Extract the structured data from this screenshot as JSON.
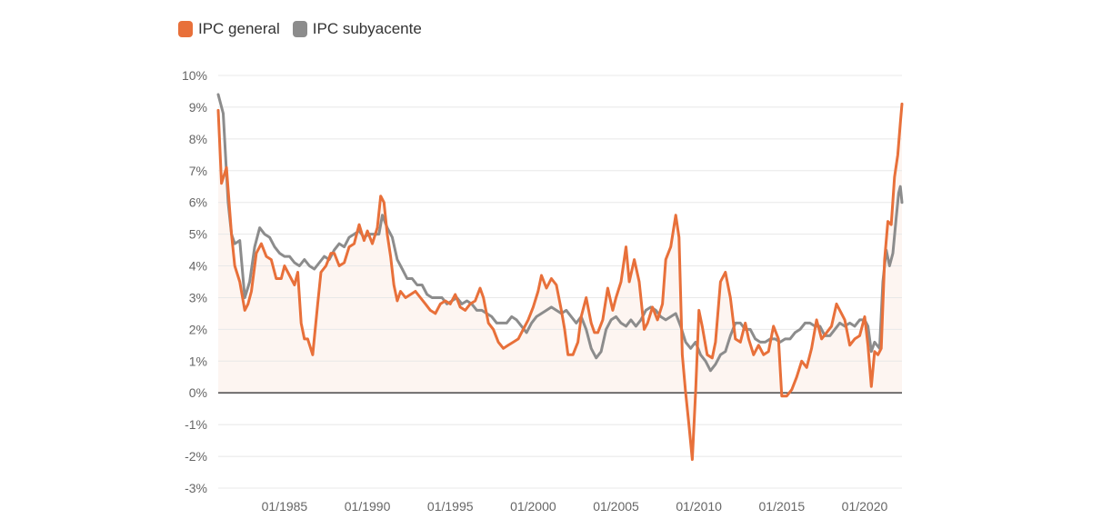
{
  "legend": {
    "items": [
      {
        "label": "IPC general",
        "color": "#E8703A"
      },
      {
        "label": "IPC subyacente",
        "color": "#8C8C8C"
      }
    ]
  },
  "chart_data": {
    "type": "line",
    "title": "",
    "xlabel": "",
    "ylabel": "",
    "ylim": [
      -3,
      10
    ],
    "xlim": [
      1981.0,
      2022.25
    ],
    "yticks": [
      "10%",
      "9%",
      "8%",
      "7%",
      "6%",
      "5%",
      "4%",
      "3%",
      "2%",
      "1%",
      "0%",
      "-1%",
      "-2%",
      "-3%"
    ],
    "ytick_values": [
      10,
      9,
      8,
      7,
      6,
      5,
      4,
      3,
      2,
      1,
      0,
      -1,
      -2,
      -3
    ],
    "xticks": [
      "01/1985",
      "01/1990",
      "01/1995",
      "01/2000",
      "01/2005",
      "01/2010",
      "01/2015",
      "01/2020"
    ],
    "xtick_values": [
      1985,
      1990,
      1995,
      2000,
      2005,
      2010,
      2015,
      2020
    ],
    "grid": true,
    "legend_position": "top-left",
    "series": [
      {
        "name": "IPC general",
        "color": "#E8703A",
        "points": [
          [
            1981.0,
            8.9
          ],
          [
            1981.2,
            6.6
          ],
          [
            1981.5,
            7.1
          ],
          [
            1981.8,
            5.0
          ],
          [
            1982.0,
            4.0
          ],
          [
            1982.3,
            3.5
          ],
          [
            1982.6,
            2.6
          ],
          [
            1982.8,
            2.8
          ],
          [
            1983.0,
            3.2
          ],
          [
            1983.3,
            4.4
          ],
          [
            1983.6,
            4.7
          ],
          [
            1983.9,
            4.3
          ],
          [
            1984.2,
            4.2
          ],
          [
            1984.5,
            3.6
          ],
          [
            1984.8,
            3.6
          ],
          [
            1985.0,
            4.0
          ],
          [
            1985.3,
            3.7
          ],
          [
            1985.6,
            3.4
          ],
          [
            1985.8,
            3.8
          ],
          [
            1986.0,
            2.2
          ],
          [
            1986.2,
            1.7
          ],
          [
            1986.4,
            1.7
          ],
          [
            1986.7,
            1.2
          ],
          [
            1987.0,
            2.8
          ],
          [
            1987.2,
            3.8
          ],
          [
            1987.5,
            4.0
          ],
          [
            1987.8,
            4.4
          ],
          [
            1988.0,
            4.4
          ],
          [
            1988.3,
            4.0
          ],
          [
            1988.6,
            4.1
          ],
          [
            1988.9,
            4.6
          ],
          [
            1989.2,
            4.7
          ],
          [
            1989.5,
            5.3
          ],
          [
            1989.8,
            4.8
          ],
          [
            1990.0,
            5.1
          ],
          [
            1990.3,
            4.7
          ],
          [
            1990.6,
            5.2
          ],
          [
            1990.8,
            6.2
          ],
          [
            1991.0,
            6.0
          ],
          [
            1991.2,
            5.0
          ],
          [
            1991.4,
            4.3
          ],
          [
            1991.6,
            3.4
          ],
          [
            1991.8,
            2.9
          ],
          [
            1992.0,
            3.2
          ],
          [
            1992.3,
            3.0
          ],
          [
            1992.6,
            3.1
          ],
          [
            1992.9,
            3.2
          ],
          [
            1993.2,
            3.0
          ],
          [
            1993.5,
            2.8
          ],
          [
            1993.8,
            2.6
          ],
          [
            1994.1,
            2.5
          ],
          [
            1994.4,
            2.8
          ],
          [
            1994.7,
            2.9
          ],
          [
            1995.0,
            2.8
          ],
          [
            1995.3,
            3.1
          ],
          [
            1995.6,
            2.7
          ],
          [
            1995.9,
            2.6
          ],
          [
            1996.2,
            2.8
          ],
          [
            1996.5,
            2.9
          ],
          [
            1996.8,
            3.3
          ],
          [
            1997.0,
            3.0
          ],
          [
            1997.3,
            2.2
          ],
          [
            1997.6,
            2.0
          ],
          [
            1997.9,
            1.6
          ],
          [
            1998.2,
            1.4
          ],
          [
            1998.5,
            1.5
          ],
          [
            1998.8,
            1.6
          ],
          [
            1999.1,
            1.7
          ],
          [
            1999.4,
            2.0
          ],
          [
            1999.7,
            2.3
          ],
          [
            2000.0,
            2.7
          ],
          [
            2000.3,
            3.2
          ],
          [
            2000.5,
            3.7
          ],
          [
            2000.8,
            3.3
          ],
          [
            2001.1,
            3.6
          ],
          [
            2001.4,
            3.4
          ],
          [
            2001.7,
            2.6
          ],
          [
            2001.9,
            2.0
          ],
          [
            2002.1,
            1.2
          ],
          [
            2002.4,
            1.2
          ],
          [
            2002.7,
            1.6
          ],
          [
            2002.9,
            2.4
          ],
          [
            2003.2,
            3.0
          ],
          [
            2003.5,
            2.2
          ],
          [
            2003.7,
            1.9
          ],
          [
            2003.9,
            1.9
          ],
          [
            2004.2,
            2.3
          ],
          [
            2004.5,
            3.3
          ],
          [
            2004.8,
            2.6
          ],
          [
            2005.0,
            3.0
          ],
          [
            2005.3,
            3.5
          ],
          [
            2005.6,
            4.6
          ],
          [
            2005.8,
            3.5
          ],
          [
            2006.1,
            4.2
          ],
          [
            2006.4,
            3.5
          ],
          [
            2006.7,
            2.0
          ],
          [
            2006.9,
            2.2
          ],
          [
            2007.2,
            2.7
          ],
          [
            2007.5,
            2.3
          ],
          [
            2007.8,
            2.8
          ],
          [
            2008.0,
            4.2
          ],
          [
            2008.3,
            4.6
          ],
          [
            2008.6,
            5.6
          ],
          [
            2008.8,
            4.9
          ],
          [
            2009.0,
            1.2
          ],
          [
            2009.2,
            0.0
          ],
          [
            2009.4,
            -1.0
          ],
          [
            2009.6,
            -2.1
          ],
          [
            2009.8,
            0.0
          ],
          [
            2010.0,
            2.6
          ],
          [
            2010.2,
            2.1
          ],
          [
            2010.5,
            1.2
          ],
          [
            2010.8,
            1.1
          ],
          [
            2011.0,
            1.6
          ],
          [
            2011.3,
            3.5
          ],
          [
            2011.6,
            3.8
          ],
          [
            2011.9,
            3.0
          ],
          [
            2012.2,
            1.7
          ],
          [
            2012.5,
            1.6
          ],
          [
            2012.8,
            2.2
          ],
          [
            2013.0,
            1.7
          ],
          [
            2013.3,
            1.2
          ],
          [
            2013.6,
            1.5
          ],
          [
            2013.9,
            1.2
          ],
          [
            2014.2,
            1.3
          ],
          [
            2014.5,
            2.1
          ],
          [
            2014.8,
            1.7
          ],
          [
            2015.0,
            -0.1
          ],
          [
            2015.3,
            -0.1
          ],
          [
            2015.6,
            0.1
          ],
          [
            2015.9,
            0.5
          ],
          [
            2016.2,
            1.0
          ],
          [
            2016.5,
            0.8
          ],
          [
            2016.8,
            1.4
          ],
          [
            2017.1,
            2.3
          ],
          [
            2017.4,
            1.7
          ],
          [
            2017.7,
            1.9
          ],
          [
            2018.0,
            2.1
          ],
          [
            2018.3,
            2.8
          ],
          [
            2018.6,
            2.5
          ],
          [
            2018.8,
            2.3
          ],
          [
            2019.1,
            1.5
          ],
          [
            2019.4,
            1.7
          ],
          [
            2019.7,
            1.8
          ],
          [
            2020.0,
            2.4
          ],
          [
            2020.2,
            1.5
          ],
          [
            2020.4,
            0.2
          ],
          [
            2020.6,
            1.3
          ],
          [
            2020.8,
            1.2
          ],
          [
            2021.0,
            1.4
          ],
          [
            2021.2,
            4.2
          ],
          [
            2021.4,
            5.4
          ],
          [
            2021.6,
            5.3
          ],
          [
            2021.8,
            6.8
          ],
          [
            2022.0,
            7.5
          ],
          [
            2022.15,
            8.5
          ],
          [
            2022.25,
            9.1
          ]
        ]
      },
      {
        "name": "IPC subyacente",
        "color": "#8C8C8C",
        "points": [
          [
            1981.0,
            9.4
          ],
          [
            1981.3,
            8.8
          ],
          [
            1981.6,
            6.0
          ],
          [
            1981.8,
            5.0
          ],
          [
            1982.0,
            4.7
          ],
          [
            1982.3,
            4.8
          ],
          [
            1982.6,
            3.0
          ],
          [
            1982.9,
            3.5
          ],
          [
            1983.2,
            4.6
          ],
          [
            1983.5,
            5.2
          ],
          [
            1983.8,
            5.0
          ],
          [
            1984.1,
            4.9
          ],
          [
            1984.4,
            4.6
          ],
          [
            1984.7,
            4.4
          ],
          [
            1985.0,
            4.3
          ],
          [
            1985.3,
            4.3
          ],
          [
            1985.6,
            4.1
          ],
          [
            1985.9,
            4.0
          ],
          [
            1986.2,
            4.2
          ],
          [
            1986.5,
            4.0
          ],
          [
            1986.8,
            3.9
          ],
          [
            1987.1,
            4.1
          ],
          [
            1987.4,
            4.3
          ],
          [
            1987.7,
            4.2
          ],
          [
            1988.0,
            4.5
          ],
          [
            1988.3,
            4.7
          ],
          [
            1988.6,
            4.6
          ],
          [
            1988.9,
            4.9
          ],
          [
            1989.2,
            5.0
          ],
          [
            1989.5,
            5.1
          ],
          [
            1989.8,
            4.9
          ],
          [
            1990.1,
            5.0
          ],
          [
            1990.4,
            5.0
          ],
          [
            1990.7,
            5.0
          ],
          [
            1990.9,
            5.6
          ],
          [
            1991.2,
            5.2
          ],
          [
            1991.5,
            4.9
          ],
          [
            1991.8,
            4.2
          ],
          [
            1992.1,
            3.9
          ],
          [
            1992.4,
            3.6
          ],
          [
            1992.7,
            3.6
          ],
          [
            1993.0,
            3.4
          ],
          [
            1993.3,
            3.4
          ],
          [
            1993.6,
            3.1
          ],
          [
            1993.9,
            3.0
          ],
          [
            1994.2,
            3.0
          ],
          [
            1994.5,
            3.0
          ],
          [
            1994.8,
            2.8
          ],
          [
            1995.1,
            2.9
          ],
          [
            1995.4,
            3.0
          ],
          [
            1995.7,
            2.8
          ],
          [
            1996.0,
            2.9
          ],
          [
            1996.3,
            2.8
          ],
          [
            1996.6,
            2.6
          ],
          [
            1996.9,
            2.6
          ],
          [
            1997.2,
            2.5
          ],
          [
            1997.5,
            2.4
          ],
          [
            1997.8,
            2.2
          ],
          [
            1998.1,
            2.2
          ],
          [
            1998.4,
            2.2
          ],
          [
            1998.7,
            2.4
          ],
          [
            1999.0,
            2.3
          ],
          [
            1999.3,
            2.1
          ],
          [
            1999.6,
            1.9
          ],
          [
            1999.9,
            2.2
          ],
          [
            2000.2,
            2.4
          ],
          [
            2000.5,
            2.5
          ],
          [
            2000.8,
            2.6
          ],
          [
            2001.1,
            2.7
          ],
          [
            2001.4,
            2.6
          ],
          [
            2001.7,
            2.5
          ],
          [
            2002.0,
            2.6
          ],
          [
            2002.3,
            2.4
          ],
          [
            2002.6,
            2.2
          ],
          [
            2002.9,
            2.4
          ],
          [
            2003.2,
            2.0
          ],
          [
            2003.5,
            1.4
          ],
          [
            2003.8,
            1.1
          ],
          [
            2004.1,
            1.3
          ],
          [
            2004.4,
            2.0
          ],
          [
            2004.7,
            2.3
          ],
          [
            2005.0,
            2.4
          ],
          [
            2005.3,
            2.2
          ],
          [
            2005.6,
            2.1
          ],
          [
            2005.9,
            2.3
          ],
          [
            2006.2,
            2.1
          ],
          [
            2006.5,
            2.3
          ],
          [
            2006.8,
            2.6
          ],
          [
            2007.1,
            2.7
          ],
          [
            2007.4,
            2.6
          ],
          [
            2007.7,
            2.4
          ],
          [
            2008.0,
            2.3
          ],
          [
            2008.3,
            2.4
          ],
          [
            2008.6,
            2.5
          ],
          [
            2008.9,
            2.1
          ],
          [
            2009.2,
            1.6
          ],
          [
            2009.5,
            1.4
          ],
          [
            2009.8,
            1.6
          ],
          [
            2010.1,
            1.2
          ],
          [
            2010.4,
            1.0
          ],
          [
            2010.7,
            0.7
          ],
          [
            2011.0,
            0.9
          ],
          [
            2011.3,
            1.2
          ],
          [
            2011.6,
            1.3
          ],
          [
            2011.9,
            1.8
          ],
          [
            2012.2,
            2.2
          ],
          [
            2012.5,
            2.2
          ],
          [
            2012.8,
            2.0
          ],
          [
            2013.1,
            2.0
          ],
          [
            2013.4,
            1.7
          ],
          [
            2013.7,
            1.6
          ],
          [
            2014.0,
            1.6
          ],
          [
            2014.3,
            1.7
          ],
          [
            2014.6,
            1.7
          ],
          [
            2014.9,
            1.6
          ],
          [
            2015.2,
            1.7
          ],
          [
            2015.5,
            1.7
          ],
          [
            2015.8,
            1.9
          ],
          [
            2016.1,
            2.0
          ],
          [
            2016.4,
            2.2
          ],
          [
            2016.7,
            2.2
          ],
          [
            2017.0,
            2.1
          ],
          [
            2017.3,
            2.1
          ],
          [
            2017.6,
            1.8
          ],
          [
            2017.9,
            1.8
          ],
          [
            2018.2,
            2.0
          ],
          [
            2018.5,
            2.2
          ],
          [
            2018.8,
            2.1
          ],
          [
            2019.1,
            2.2
          ],
          [
            2019.4,
            2.1
          ],
          [
            2019.7,
            2.3
          ],
          [
            2020.0,
            2.3
          ],
          [
            2020.2,
            2.1
          ],
          [
            2020.4,
            1.3
          ],
          [
            2020.6,
            1.6
          ],
          [
            2020.9,
            1.4
          ],
          [
            2021.1,
            3.5
          ],
          [
            2021.3,
            4.5
          ],
          [
            2021.5,
            4.0
          ],
          [
            2021.7,
            4.4
          ],
          [
            2021.9,
            5.5
          ],
          [
            2022.05,
            6.3
          ],
          [
            2022.15,
            6.5
          ],
          [
            2022.25,
            6.0
          ]
        ]
      }
    ]
  }
}
